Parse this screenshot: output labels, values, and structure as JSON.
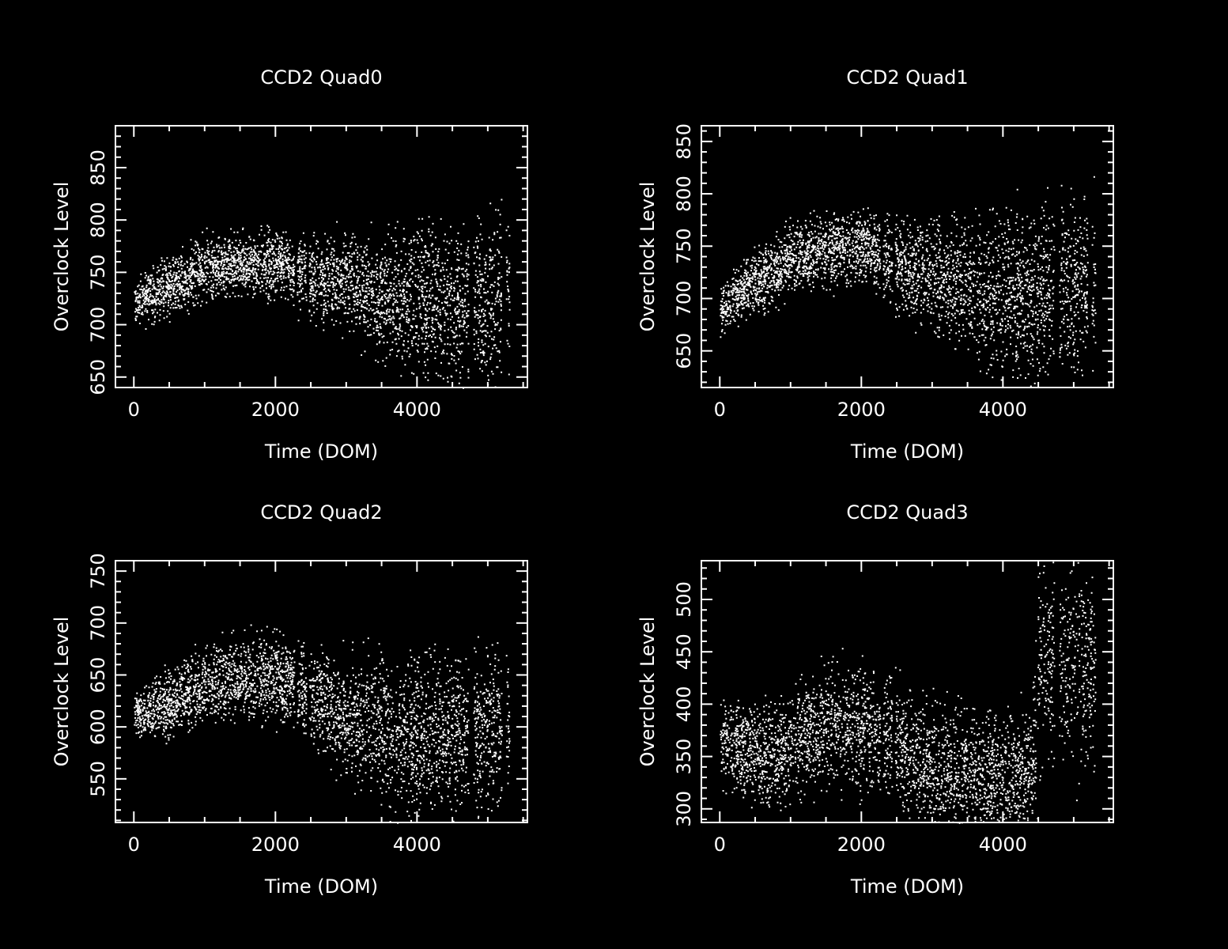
{
  "chart_data": [
    {
      "type": "scatter",
      "title": "CCD2 Quad0",
      "xlabel": "Time (DOM)",
      "ylabel": "Overclock Level",
      "xlim": [
        -260,
        5560
      ],
      "ylim": [
        640,
        890
      ],
      "xticks": [
        0,
        2000,
        4000
      ],
      "yticks": [
        650,
        700,
        750,
        800,
        850
      ],
      "grid": false,
      "point_color": "#ffffff",
      "trend": [
        [
          0,
          720
        ],
        [
          500,
          738
        ],
        [
          1000,
          752
        ],
        [
          1500,
          758
        ],
        [
          2100,
          758
        ],
        [
          2500,
          746
        ],
        [
          3000,
          740
        ],
        [
          3500,
          730
        ],
        [
          4000,
          722
        ],
        [
          4500,
          722
        ],
        [
          5300,
          725
        ]
      ],
      "spread": [
        [
          0,
          14
        ],
        [
          600,
          20
        ],
        [
          2200,
          22
        ],
        [
          3000,
          30
        ],
        [
          3500,
          38
        ],
        [
          4000,
          50
        ],
        [
          5300,
          55
        ]
      ],
      "gaps": [
        [
          2260,
          2300
        ],
        [
          2430,
          2470
        ],
        [
          4720,
          4790
        ],
        [
          5190,
          5250
        ]
      ]
    },
    {
      "type": "scatter",
      "title": "CCD2 Quad1",
      "xlabel": "Time (DOM)",
      "ylabel": "Overclock Level",
      "xlim": [
        -260,
        5560
      ],
      "ylim": [
        615,
        865
      ],
      "xticks": [
        0,
        2000,
        4000
      ],
      "yticks": [
        650,
        700,
        750,
        800,
        850
      ],
      "grid": false,
      "point_color": "#ffffff",
      "trend": [
        [
          0,
          690
        ],
        [
          400,
          712
        ],
        [
          1000,
          738
        ],
        [
          1600,
          750
        ],
        [
          2100,
          748
        ],
        [
          2500,
          735
        ],
        [
          3000,
          720
        ],
        [
          3500,
          712
        ],
        [
          4000,
          705
        ],
        [
          4500,
          705
        ],
        [
          5300,
          712
        ]
      ],
      "spread": [
        [
          0,
          14
        ],
        [
          800,
          22
        ],
        [
          2200,
          25
        ],
        [
          3000,
          35
        ],
        [
          3500,
          45
        ],
        [
          4000,
          52
        ],
        [
          5300,
          55
        ]
      ],
      "gaps": [
        [
          2260,
          2300
        ],
        [
          2430,
          2470
        ],
        [
          4720,
          4790
        ],
        [
          5190,
          5250
        ]
      ]
    },
    {
      "type": "scatter",
      "title": "CCD2 Quad2",
      "xlabel": "Time (DOM)",
      "ylabel": "Overclock Level",
      "xlim": [
        -260,
        5560
      ],
      "ylim": [
        508,
        760
      ],
      "xticks": [
        0,
        2000,
        4000
      ],
      "yticks": [
        550,
        600,
        650,
        700,
        750
      ],
      "grid": false,
      "point_color": "#ffffff",
      "trend": [
        [
          0,
          610
        ],
        [
          500,
          622
        ],
        [
          1000,
          640
        ],
        [
          1600,
          648
        ],
        [
          2100,
          645
        ],
        [
          2500,
          628
        ],
        [
          3000,
          612
        ],
        [
          3500,
          598
        ],
        [
          4000,
          590
        ],
        [
          4500,
          595
        ],
        [
          5300,
          605
        ]
      ],
      "spread": [
        [
          0,
          15
        ],
        [
          800,
          25
        ],
        [
          2200,
          28
        ],
        [
          3000,
          38
        ],
        [
          3500,
          48
        ],
        [
          4000,
          52
        ],
        [
          5300,
          50
        ]
      ],
      "gaps": [
        [
          2260,
          2300
        ],
        [
          2430,
          2470
        ],
        [
          4720,
          4790
        ],
        [
          5190,
          5250
        ]
      ]
    },
    {
      "type": "scatter",
      "title": "CCD2 Quad3",
      "xlabel": "Time (DOM)",
      "ylabel": "Overclock Level",
      "xlim": [
        -260,
        5560
      ],
      "ylim": [
        287,
        537
      ],
      "xticks": [
        0,
        2000,
        4000
      ],
      "yticks": [
        300,
        350,
        400,
        450,
        500
      ],
      "grid": false,
      "point_color": "#ffffff",
      "trend": [
        [
          0,
          362
        ],
        [
          800,
          352
        ],
        [
          1500,
          380
        ],
        [
          2100,
          378
        ],
        [
          2500,
          362
        ],
        [
          3000,
          342
        ],
        [
          3500,
          335
        ],
        [
          4000,
          330
        ],
        [
          4400,
          332
        ],
        [
          4500,
          440
        ],
        [
          5300,
          440
        ]
      ],
      "spread": [
        [
          0,
          28
        ],
        [
          1500,
          38
        ],
        [
          2200,
          38
        ],
        [
          3000,
          40
        ],
        [
          4400,
          42
        ],
        [
          4500,
          70
        ],
        [
          5300,
          70
        ]
      ],
      "gaps": [
        [
          2260,
          2300
        ],
        [
          2430,
          2470
        ],
        [
          4460,
          4480
        ],
        [
          4720,
          4790
        ]
      ]
    }
  ]
}
